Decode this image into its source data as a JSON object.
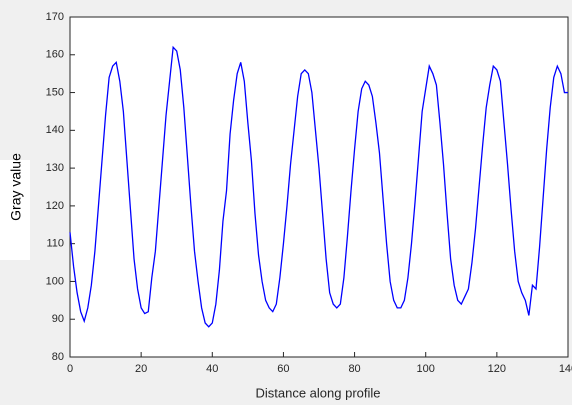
{
  "chart_data": {
    "type": "line",
    "x_label": "Distance along profile",
    "y_label": "Gray value",
    "x": [
      0,
      1,
      2,
      3,
      4,
      5,
      6,
      7,
      8,
      9,
      10,
      11,
      12,
      13,
      14,
      15,
      16,
      17,
      18,
      19,
      20,
      21,
      22,
      23,
      24,
      25,
      26,
      27,
      28,
      29,
      30,
      31,
      32,
      33,
      34,
      35,
      36,
      37,
      38,
      39,
      40,
      41,
      42,
      43,
      44,
      45,
      46,
      47,
      48,
      49,
      50,
      51,
      52,
      53,
      54,
      55,
      56,
      57,
      58,
      59,
      60,
      61,
      62,
      63,
      64,
      65,
      66,
      67,
      68,
      69,
      70,
      71,
      72,
      73,
      74,
      75,
      76,
      77,
      78,
      79,
      80,
      81,
      82,
      83,
      84,
      85,
      86,
      87,
      88,
      89,
      90,
      91,
      92,
      93,
      94,
      95,
      96,
      97,
      98,
      99,
      100,
      101,
      102,
      103,
      104,
      105,
      106,
      107,
      108,
      109,
      110,
      111,
      112,
      113,
      114,
      115,
      116,
      117,
      118,
      119,
      120,
      121,
      122,
      123,
      124,
      125,
      126,
      127,
      128,
      129,
      130,
      131,
      132,
      133,
      134,
      135,
      136,
      137,
      138,
      139,
      140
    ],
    "series": [
      {
        "color": "#0000ff",
        "values": [
          113,
          104,
          97,
          92,
          89.5,
          93,
          99,
          108,
          120,
          132,
          144,
          154,
          157,
          158,
          153,
          145,
          132,
          119,
          106,
          98,
          93,
          91.5,
          92,
          101,
          108,
          120,
          132,
          144,
          153,
          162,
          161,
          156,
          146,
          133,
          120,
          108,
          100,
          93,
          89,
          88,
          89,
          94,
          103,
          116,
          124,
          139,
          148,
          155,
          158,
          153,
          142,
          132,
          118,
          107,
          100,
          95,
          93,
          92,
          94,
          101,
          110,
          120,
          131,
          140,
          149,
          155,
          156,
          155,
          150,
          140,
          130,
          118,
          106,
          97,
          94,
          93,
          94,
          101,
          112,
          124,
          135,
          145,
          151,
          153,
          152,
          149,
          142,
          134,
          122,
          110,
          100,
          95,
          93,
          93,
          95,
          101,
          110,
          121,
          133,
          145,
          151,
          157,
          155,
          152,
          142,
          131,
          118,
          106,
          99,
          95,
          94,
          96,
          98,
          105,
          114,
          125,
          136,
          146,
          152,
          157,
          156,
          153,
          142,
          131,
          119,
          108,
          100,
          97,
          95,
          91,
          99,
          98,
          109,
          122,
          135,
          146,
          154,
          157,
          155,
          150,
          150
        ]
      }
    ],
    "xlim": [
      0,
      140
    ],
    "ylim": [
      80,
      170
    ],
    "xticks": [
      0,
      20,
      40,
      60,
      80,
      100,
      120,
      140
    ],
    "yticks": [
      80,
      90,
      100,
      110,
      120,
      130,
      140,
      150,
      160,
      170
    ]
  }
}
